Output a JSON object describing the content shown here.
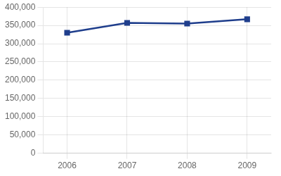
{
  "chart_data": {
    "type": "line",
    "x": [
      2006,
      2007,
      2008,
      2009
    ],
    "values": [
      330000,
      357000,
      355000,
      367000
    ],
    "color": "#1f3e8c",
    "marker": "square",
    "xlim": [
      2005.6,
      2009.4
    ],
    "xticks": [
      2006,
      2007,
      2008,
      2009
    ],
    "ylim": [
      0,
      400000
    ],
    "yticks": [
      0,
      {
        "value": 50000,
        "label": "50,000"
      },
      {
        "value": 100000,
        "label": "100,000"
      },
      {
        "value": 150000,
        "label": "150,000"
      },
      {
        "value": 200000,
        "label": "200,000"
      },
      {
        "value": 250000,
        "label": "250,000"
      },
      {
        "value": 300000,
        "label": "300,000"
      },
      {
        "value": 350000,
        "label": "350,000"
      },
      {
        "value": 400000,
        "label": "400,000"
      }
    ],
    "grid": true
  }
}
